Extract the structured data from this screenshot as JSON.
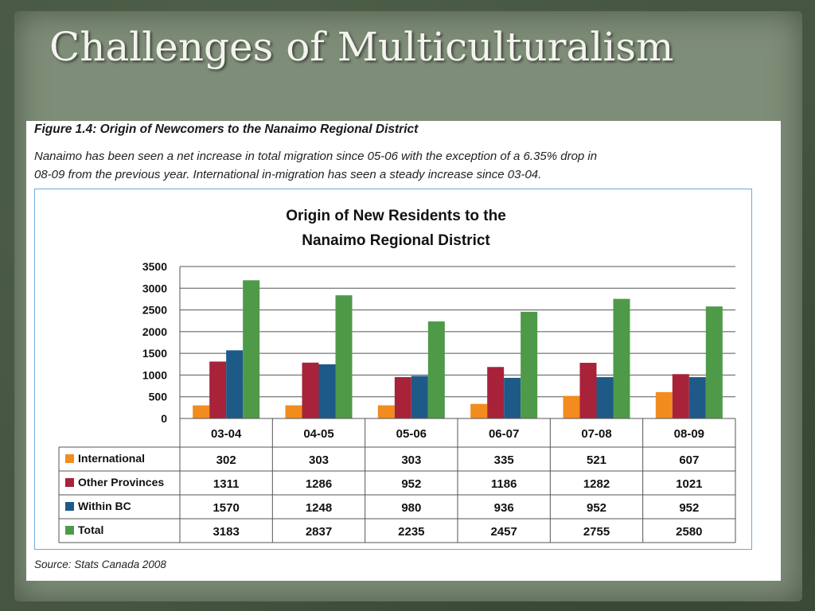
{
  "slide": {
    "title": "Challenges of Multiculturalism"
  },
  "document": {
    "figure_title": "Figure 1.4: Origin of Newcomers to the Nanaimo Regional District",
    "description_line1": "Nanaimo has been seen a net increase in total migration since 05-06 with the exception of a 6.35% drop in",
    "description_line2": "08-09 from the previous year.  International in-migration has seen a steady increase since 03-04.",
    "source": "Source: Stats Canada 2008"
  },
  "chart_data": {
    "type": "bar",
    "title_line1": "Origin of New Residents to the",
    "title_line2": "Nanaimo Regional District",
    "categories": [
      "03-04",
      "04-05",
      "05-06",
      "06-07",
      "07-08",
      "08-09"
    ],
    "yticks": [
      0,
      500,
      1000,
      1500,
      2000,
      2500,
      3000,
      3500
    ],
    "ylim": [
      0,
      3500
    ],
    "grid": true,
    "legend": "data-table",
    "series": [
      {
        "name": "International",
        "color": "#f28c1e",
        "values": [
          302,
          303,
          303,
          335,
          521,
          607
        ]
      },
      {
        "name": "Other Provinces",
        "color": "#a8223a",
        "values": [
          1311,
          1286,
          952,
          1186,
          1282,
          1021
        ]
      },
      {
        "name": "Within BC",
        "color": "#1e5a88",
        "values": [
          1570,
          1248,
          980,
          936,
          952,
          952
        ]
      },
      {
        "name": "Total",
        "color": "#4e9a48",
        "values": [
          3183,
          2837,
          2235,
          2457,
          2755,
          2580
        ]
      }
    ]
  }
}
